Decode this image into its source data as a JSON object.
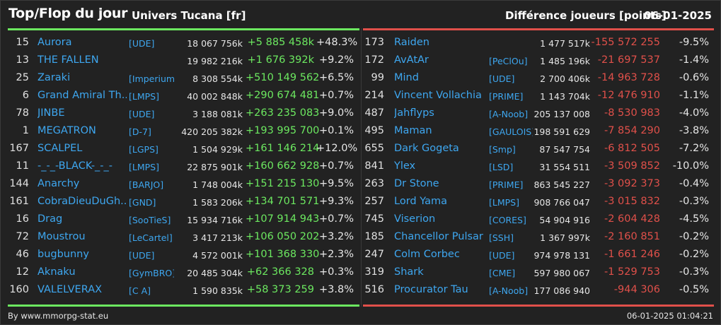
{
  "header": {
    "title": "Top/Flop du jour",
    "universe": "Univers Tucana [fr]",
    "metric": "Différence joueurs [points]",
    "date": "06-01-2025"
  },
  "colors": {
    "positive": "#6ce860",
    "negative": "#e0504a",
    "link": "#3ea7f0",
    "background": "#222222"
  },
  "top": [
    {
      "rank": "15",
      "name": "Aurora",
      "guild": "[UDE]",
      "total": "18 067 756k",
      "diff": "+5 885 458k",
      "pct": "+48.3%"
    },
    {
      "rank": "13",
      "name": "THE FALLEN",
      "guild": "",
      "total": "19 982 216k",
      "diff": "+1 676 392k",
      "pct": "+9.2%"
    },
    {
      "rank": "25",
      "name": "Zaraki",
      "guild": "[Imperium]",
      "total": "8 308 554k",
      "diff": "+510 149 562",
      "pct": "+6.5%"
    },
    {
      "rank": "6",
      "name": "Grand Amiral Th...",
      "guild": "[LMPS]",
      "total": "40 002 848k",
      "diff": "+290 674 481",
      "pct": "+0.7%"
    },
    {
      "rank": "78",
      "name": "JINBE",
      "guild": "[UDE]",
      "total": "3 188 081k",
      "diff": "+263 235 083",
      "pct": "+9.0%"
    },
    {
      "rank": "1",
      "name": "MEGATRON",
      "guild": "[D-7]",
      "total": "420 205 382k",
      "diff": "+193 995 700",
      "pct": "+0.1%"
    },
    {
      "rank": "167",
      "name": "SCALPEL",
      "guild": "[LGPS]",
      "total": "1 504 929k",
      "diff": "+161 146 214",
      "pct": "+12.0%"
    },
    {
      "rank": "11",
      "name": "-_-_-BLACK-_-_-",
      "guild": "[LMPS]",
      "total": "22 875 901k",
      "diff": "+160 662 928",
      "pct": "+0.7%"
    },
    {
      "rank": "144",
      "name": "Anarchy",
      "guild": "[BARJO]",
      "total": "1 748 004k",
      "diff": "+151 215 130",
      "pct": "+9.5%"
    },
    {
      "rank": "161",
      "name": "CobraDieuDuGh...",
      "guild": "[GND]",
      "total": "1 583 206k",
      "diff": "+134 701 571",
      "pct": "+9.3%"
    },
    {
      "rank": "16",
      "name": "Drag",
      "guild": "[SooTieS]",
      "total": "15 934 716k",
      "diff": "+107 914 943",
      "pct": "+0.7%"
    },
    {
      "rank": "72",
      "name": "Moustrou",
      "guild": "[LeCartel]",
      "total": "3 417 213k",
      "diff": "+106 050 202",
      "pct": "+3.2%"
    },
    {
      "rank": "46",
      "name": "bugbunny",
      "guild": "[UDE]",
      "total": "4 572 001k",
      "diff": "+101 368 330",
      "pct": "+2.3%"
    },
    {
      "rank": "12",
      "name": "Aknaku",
      "guild": "[GymBRO]",
      "total": "20 485 304k",
      "diff": "+62 366 328",
      "pct": "+0.3%"
    },
    {
      "rank": "160",
      "name": "VALELVERAX",
      "guild": "[C A]",
      "total": "1 590 835k",
      "diff": "+58 373 259",
      "pct": "+3.8%"
    }
  ],
  "flop": [
    {
      "rank": "173",
      "name": "Raiden",
      "guild": "",
      "total": "1 477 517k",
      "diff": "-155 572 255",
      "pct": "-9.5%"
    },
    {
      "rank": "172",
      "name": "AvAtAr",
      "guild": "[PeClOu]",
      "total": "1 485 196k",
      "diff": "-21 697 537",
      "pct": "-1.4%"
    },
    {
      "rank": "99",
      "name": "Mind",
      "guild": "[UDE]",
      "total": "2 700 406k",
      "diff": "-14 963 728",
      "pct": "-0.6%"
    },
    {
      "rank": "214",
      "name": "Vincent Vollachia",
      "guild": "[PRIME]",
      "total": "1 143 704k",
      "diff": "-12 476 910",
      "pct": "-1.1%"
    },
    {
      "rank": "487",
      "name": "Jahflyps",
      "guild": "[A-Noob]",
      "total": "205 137 008",
      "diff": "-8 530 983",
      "pct": "-4.0%"
    },
    {
      "rank": "495",
      "name": "Maman",
      "guild": "[GAULOIS]",
      "total": "198 591 629",
      "diff": "-7 854 290",
      "pct": "-3.8%"
    },
    {
      "rank": "655",
      "name": "Dark Gogeta",
      "guild": "[Smp]",
      "total": "87 547 754",
      "diff": "-6 812 505",
      "pct": "-7.2%"
    },
    {
      "rank": "841",
      "name": "Ylex",
      "guild": "[LSD]",
      "total": "31 554 511",
      "diff": "-3 509 852",
      "pct": "-10.0%"
    },
    {
      "rank": "263",
      "name": "Dr Stone",
      "guild": "[PRIME]",
      "total": "863 545 227",
      "diff": "-3 092 373",
      "pct": "-0.4%"
    },
    {
      "rank": "257",
      "name": "Lord Yama",
      "guild": "[LMPS]",
      "total": "908 766 047",
      "diff": "-3 015 832",
      "pct": "-0.3%"
    },
    {
      "rank": "745",
      "name": "Viserion",
      "guild": "[CORES]",
      "total": "54 904 916",
      "diff": "-2 604 428",
      "pct": "-4.5%"
    },
    {
      "rank": "185",
      "name": "Chancellor Pulsar",
      "guild": "[SSH]",
      "total": "1 367 997k",
      "diff": "-2 160 851",
      "pct": "-0.2%"
    },
    {
      "rank": "247",
      "name": "Colm Corbec",
      "guild": "[UDE]",
      "total": "974 978 131",
      "diff": "-1 661 246",
      "pct": "-0.2%"
    },
    {
      "rank": "319",
      "name": "Shark",
      "guild": "[CME]",
      "total": "597 980 067",
      "diff": "-1 529 753",
      "pct": "-0.3%"
    },
    {
      "rank": "516",
      "name": "Procurator Tau",
      "guild": "[A-Noob]",
      "total": "177 086 940",
      "diff": "-944 306",
      "pct": "-0.5%"
    }
  ],
  "footer": {
    "source": "By www.mmorpg-stat.eu",
    "timestamp": "06-01-2025 01:04:21"
  }
}
